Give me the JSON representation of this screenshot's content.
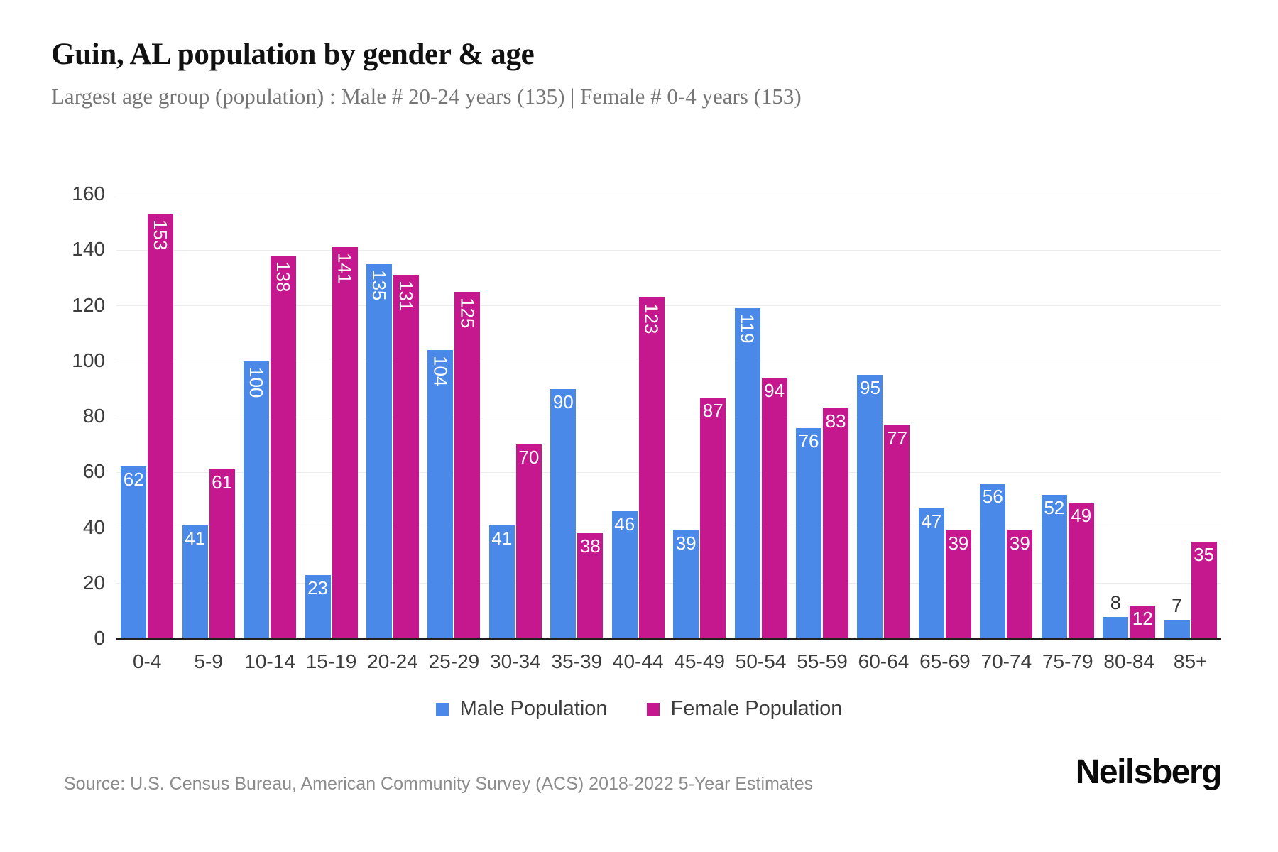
{
  "header": {
    "title": "Guin, AL population by gender & age",
    "subtitle": "Largest age group (population) : Male # 20-24 years (135) | Female # 0-4 years (153)"
  },
  "chart_data": {
    "type": "bar",
    "title": "Guin, AL population by gender & age",
    "xlabel": "",
    "ylabel": "",
    "categories": [
      "0-4",
      "5-9",
      "10-14",
      "15-19",
      "20-24",
      "25-29",
      "30-34",
      "35-39",
      "40-44",
      "45-49",
      "50-54",
      "55-59",
      "60-64",
      "65-69",
      "70-74",
      "75-79",
      "80-84",
      "85+"
    ],
    "series": [
      {
        "name": "Male Population",
        "color": "#4a89e8",
        "values": [
          62,
          41,
          100,
          23,
          135,
          104,
          41,
          90,
          46,
          39,
          119,
          76,
          95,
          47,
          56,
          52,
          8,
          7
        ]
      },
      {
        "name": "Female Population",
        "color": "#c5188e",
        "values": [
          153,
          61,
          138,
          141,
          131,
          125,
          70,
          38,
          123,
          87,
          94,
          83,
          77,
          39,
          39,
          49,
          12,
          35
        ]
      }
    ],
    "ylim": [
      0,
      160
    ],
    "yticks": [
      0,
      20,
      40,
      60,
      80,
      100,
      120,
      140,
      160
    ],
    "grid": "horizontal",
    "legend_position": "bottom",
    "bar_label_colors": {
      "inside": "#ffffff",
      "outside": "#333333"
    },
    "gridline_color": "#ececec",
    "axis_line_color": "#1f1f1f"
  },
  "footer": {
    "source": "Source: U.S. Census Bureau, American Community Survey (ACS) 2018-2022 5-Year Estimates",
    "brand": "Neilsberg"
  }
}
